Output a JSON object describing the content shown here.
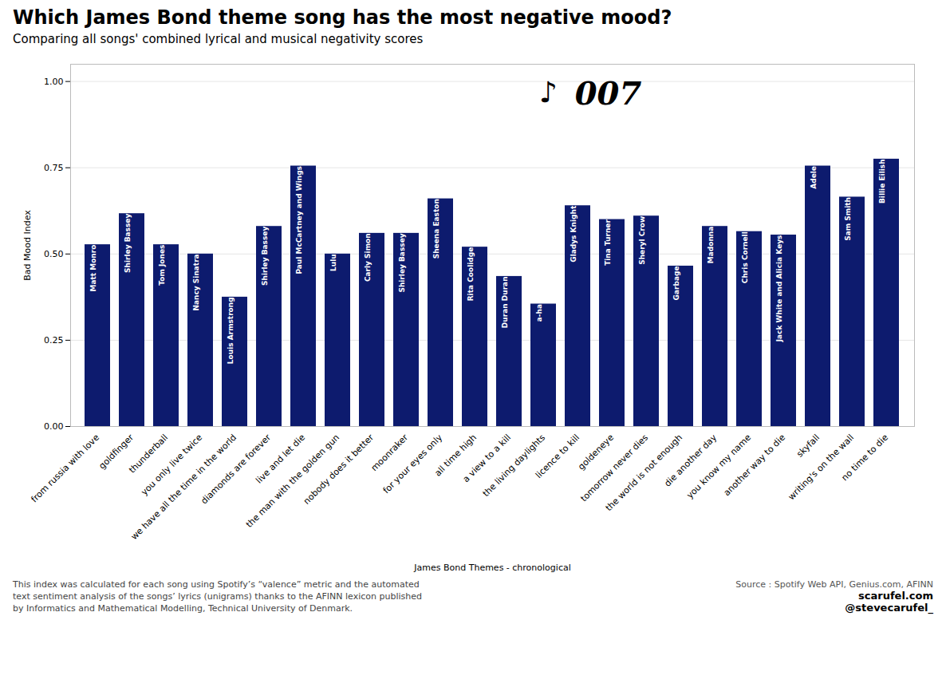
{
  "chart_data": {
    "type": "bar",
    "title": "Which James Bond theme song has the most negative mood?",
    "subtitle": "Comparing all songs' combined lyrical and musical negativity scores",
    "xlabel": "James Bond Themes - chronological",
    "ylabel": "Bad Mood Index",
    "categories": [
      "from russia with love",
      "goldfinger",
      "thunderball",
      "you only live twice",
      "we have all the time in the world",
      "diamonds are forever",
      "live and let die",
      "the man with the golden gun",
      "nobody does it better",
      "moonraker",
      "for your eyes only",
      "all time high",
      "a view to a kill",
      "the living daylights",
      "licence to kill",
      "goldeneye",
      "tomorrow never dies",
      "the world is not enough",
      "die another day",
      "you know my name",
      "another way to die",
      "skyfall",
      "writing's on the wall",
      "no time to die"
    ],
    "values": [
      0.527,
      0.617,
      0.527,
      0.5,
      0.375,
      0.58,
      0.755,
      0.5,
      0.56,
      0.56,
      0.66,
      0.52,
      0.435,
      0.355,
      0.64,
      0.6,
      0.61,
      0.465,
      0.58,
      0.565,
      0.555,
      0.755,
      0.665,
      0.775
    ],
    "bar_labels": [
      "Matt Monro",
      "Shirley Bassey",
      "Tom Jones",
      "Nancy Sinatra",
      "Louis Armstrong",
      "Shirley Bassey",
      "Paul McCartney and Wings",
      "Lulu",
      "Carly Simon",
      "Shirley Bassey",
      "Sheena Easton",
      "Rita Coolidge",
      "Duran Duran",
      "a-ha",
      "Gladys Knight",
      "Tina Turner",
      "Sheryl Crow",
      "Garbage",
      "Madonna",
      "Chris Cornell",
      "Jack White and Alicia Keys",
      "Adele",
      "Sam Smith",
      "Billie Eilish"
    ],
    "color": "#0d1b6e",
    "ylim": [
      0,
      1.05
    ],
    "yticks": [
      {
        "value": 0,
        "label": "0.00"
      },
      {
        "value": 0.25,
        "label": "0.25"
      },
      {
        "value": 0.5,
        "label": "0.50"
      },
      {
        "value": 0.75,
        "label": "0.75"
      },
      {
        "value": 1,
        "label": "1.00"
      }
    ],
    "grid": true,
    "logo": [
      "♪",
      "007"
    ],
    "source": "Source : Spotify Web API, Genius.com, AFINN",
    "credits": [
      "scarufel.com",
      "@stevecarufel_"
    ],
    "footnote": "This index was calculated for each song using Spotify’s “valence” metric and the automated\ntext sentiment analysis of the songs’ lyrics (unigrams) thanks to the AFINN lexicon published\nby Informatics and Mathematical Modelling, Technical University of Denmark."
  }
}
